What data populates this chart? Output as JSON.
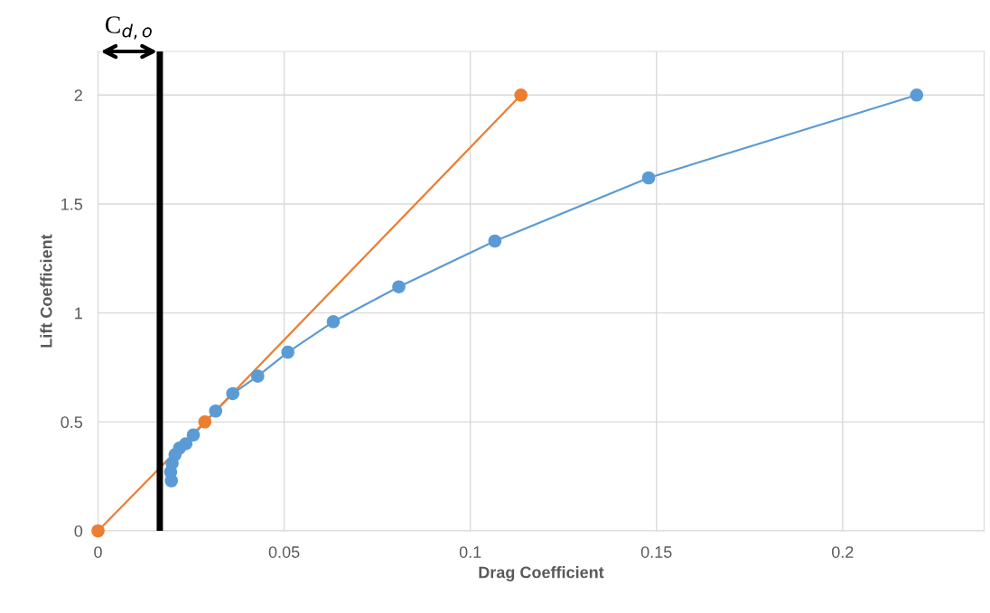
{
  "chart_data": {
    "type": "line",
    "xlabel": "Drag Coefficient",
    "ylabel": "Lift Coefficient",
    "series": [
      {
        "color": "#5b9bd5",
        "x": [
          0.0197,
          0.0195,
          0.0199,
          0.0207,
          0.0219,
          0.0236,
          0.0256,
          0.0316,
          0.0362,
          0.0429,
          0.051,
          0.0632,
          0.0808,
          0.1066,
          0.1479,
          0.2199
        ],
        "values": [
          0.23,
          0.27,
          0.31,
          0.35,
          0.38,
          0.4,
          0.44,
          0.55,
          0.63,
          0.71,
          0.82,
          0.96,
          1.12,
          1.33,
          1.62,
          2.0
        ]
      },
      {
        "color": "#ed7d31",
        "x": [
          0,
          0.0287,
          0.1136
        ],
        "values": [
          0,
          0.5,
          2.0
        ]
      }
    ],
    "ref_lines": [
      {
        "axis": "x",
        "value": 0.0166,
        "label": "C$_{d,o}$",
        "color": "#000000"
      }
    ],
    "xlim": [
      0,
      0.238
    ],
    "ylim": [
      0,
      2.2
    ],
    "xticks": [
      0,
      0.05,
      0.1,
      0.15,
      0.2
    ],
    "yticks": [
      0,
      0.5,
      1,
      1.5,
      2
    ],
    "grid": true,
    "legend": false,
    "marker": "circle",
    "line_style": "solid"
  }
}
